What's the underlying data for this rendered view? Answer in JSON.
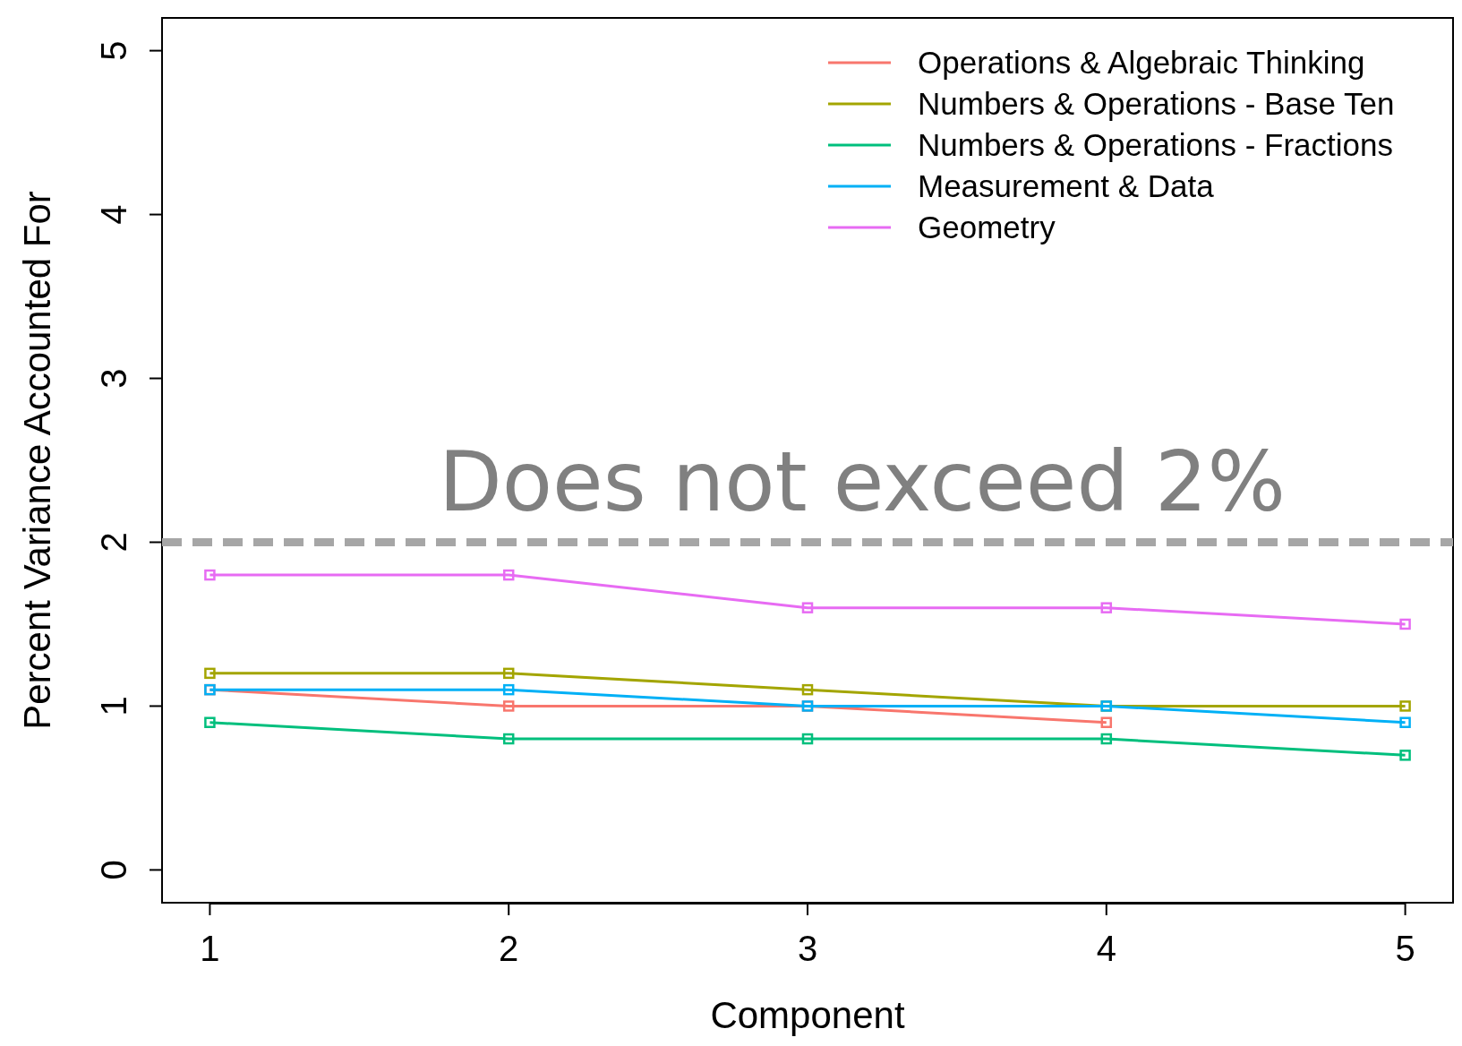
{
  "chart_data": {
    "type": "line",
    "xlabel": "Component",
    "ylabel": "Percent Variance Accounted For",
    "x": [
      1,
      2,
      3,
      4,
      5
    ],
    "xlim": [
      0.84,
      5.16
    ],
    "xticks": [
      1,
      2,
      3,
      4,
      5
    ],
    "ylim": [
      -0.2,
      5.2
    ],
    "yticks": [
      0,
      1,
      2,
      3,
      4,
      5
    ],
    "series": [
      {
        "name": "Operations & Algebraic Thinking",
        "color": "#f8766d",
        "values": [
          1.1,
          1.0,
          1.0,
          0.9,
          null
        ]
      },
      {
        "name": "Numbers & Operations - Base Ten",
        "color": "#a3a500",
        "values": [
          1.2,
          1.2,
          1.1,
          1.0,
          1.0
        ]
      },
      {
        "name": "Numbers & Operations - Fractions",
        "color": "#00bf7d",
        "values": [
          0.9,
          0.8,
          0.8,
          0.8,
          0.7
        ]
      },
      {
        "name": "Measurement & Data",
        "color": "#00b0f6",
        "values": [
          1.1,
          1.1,
          1.0,
          1.0,
          0.9
        ]
      },
      {
        "name": "Geometry",
        "color": "#e76bf3",
        "values": [
          1.8,
          1.8,
          1.6,
          1.6,
          1.5
        ]
      }
    ],
    "ref_lines": [
      {
        "axis": "y",
        "value": 2,
        "label": "Does not exceed 2%",
        "color": "#a6a6a6",
        "line_style": "dashed"
      }
    ],
    "marker": "square",
    "line_style": "solid",
    "legend": "top right",
    "grid": false
  }
}
